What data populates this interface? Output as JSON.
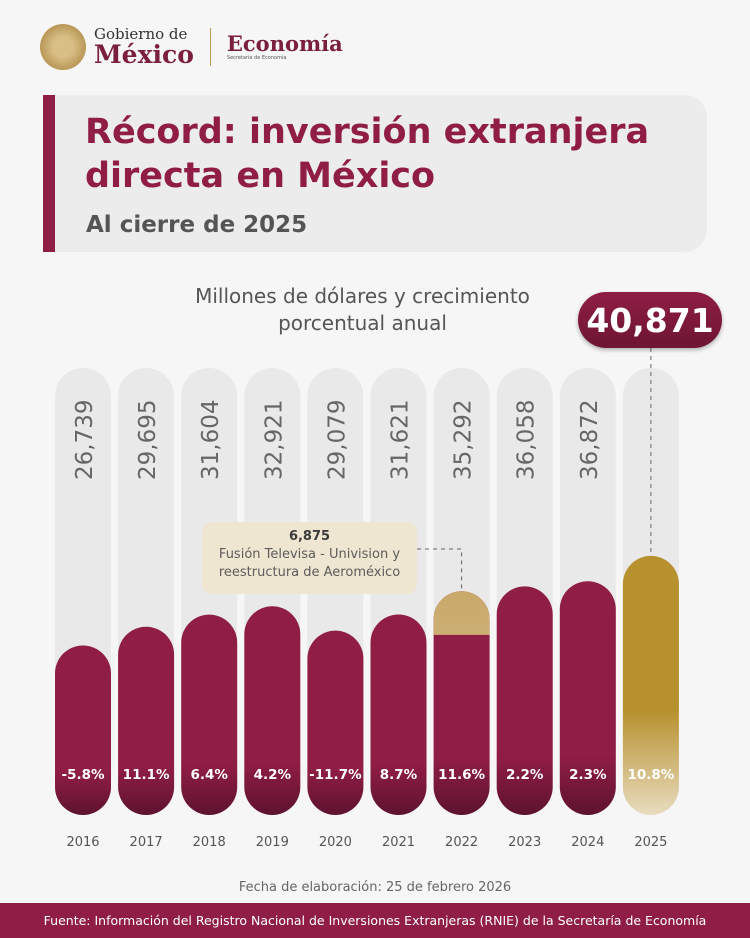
{
  "header": {
    "gov_line1": "Gobierno de",
    "gov_line2": "México",
    "ministry": "Economía",
    "ministry_sub": "Secretaría de Economía"
  },
  "card": {
    "title": "Récord: inversión extranjera directa en México",
    "subtitle": "Al cierre de 2025"
  },
  "chart_data": {
    "type": "bar",
    "title": "Millones de dólares y crecimiento porcentual anual",
    "categories": [
      "2016",
      "2017",
      "2018",
      "2019",
      "2020",
      "2021",
      "2022",
      "2023",
      "2024",
      "2025"
    ],
    "values": [
      26739,
      29695,
      31604,
      32921,
      29079,
      31621,
      35292,
      36058,
      36872,
      40871
    ],
    "value_labels": [
      "26,739",
      "29,695",
      "31,604",
      "32,921",
      "29,079",
      "31,621",
      "35,292",
      "36,058",
      "36,872",
      "40,871"
    ],
    "growth_labels": [
      "-5.8%",
      "11.1%",
      "6.4%",
      "4.2%",
      "-11.7%",
      "8.7%",
      "11.6%",
      "2.2%",
      "2.3%",
      "10.8%"
    ],
    "highlight": {
      "category": "2025",
      "value_label": "40,871"
    },
    "annotation": {
      "category": "2022",
      "value": 6875,
      "value_label": "6,875",
      "text": "Fusión Televisa - Univision y reestructura de Aeroméxico"
    },
    "colors": {
      "bar": "#8f1d45",
      "highlight": "#b8912f",
      "annotation_segment": "#c9a96a",
      "track": "#e9e9e9"
    }
  },
  "footer": {
    "date": "Fecha de elaboración: 25 de febrero 2026",
    "source": "Fuente: Información del Registro Nacional de Inversiones Extranjeras (RNIE) de la Secretaría de Economía"
  }
}
